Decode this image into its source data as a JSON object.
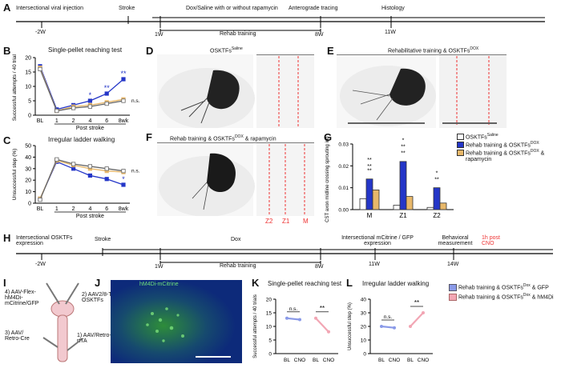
{
  "panels": {
    "A": {
      "label": "A",
      "events": [
        "Intersectional viral injection",
        "Stroke",
        "Dox/Saline with or without rapamycin",
        "Anterograde tracing",
        "Histology"
      ],
      "ticks": [
        "-2W",
        "1W",
        "8W",
        "11W"
      ],
      "rehab": "Rehab training"
    },
    "B": {
      "label": "B",
      "title": "Single-pellet reaching test",
      "ylabel": "Successful attempts / 40 trials",
      "xlabel": "Post stroke",
      "ns": "n.s."
    },
    "C": {
      "label": "C",
      "title": "Irregular ladder walking",
      "ylabel": "Unsuccessful step (%)",
      "xlabel": "Post stroke",
      "ns": "n.s."
    },
    "D": {
      "label": "D",
      "title": "OSKTFs",
      "title_sup": "Saline"
    },
    "E": {
      "label": "E",
      "title": "Rehabilitative training & OSKTFs",
      "title_sup": "DOX"
    },
    "F": {
      "label": "F",
      "title": "Rehab training & OSKTFs",
      "title_sup": "DOX",
      "title_suffix": " & rapamycin",
      "zones": [
        "Z2",
        "Z1",
        "M"
      ]
    },
    "G": {
      "label": "G",
      "ylabel": "CST axon midline crossing sprouting index",
      "legend": [
        {
          "text": "OSKTFs",
          "sup": "Saline",
          "color": "#ffffff"
        },
        {
          "text": "Rehab training & OSKTFs",
          "sup": "DOX",
          "color": "#2436c8"
        },
        {
          "text": "Rehab training & OSKTFs",
          "sup": "DOX",
          "suffix": " &",
          "color": "#e8b86a"
        },
        {
          "text": "rapamycin",
          "color": ""
        }
      ],
      "sig": [
        "**",
        "**",
        "**",
        "*",
        "**",
        "**",
        "*",
        "**"
      ]
    },
    "H": {
      "label": "H",
      "events": [
        "Intersectional OSKTFs expression",
        "Stroke",
        "Dox",
        "Intersectional mCitrine / GFP expression",
        "Behavioral measurement",
        "1h post CNO"
      ],
      "ticks": [
        "-2W",
        "1W",
        "8W",
        "11W",
        "14W"
      ],
      "rehab": "Rehab training"
    },
    "I": {
      "label": "I",
      "items": [
        "4) AAV-Flex-hM4Di-mCitrine/GFP",
        "2) AAV2/8-TRE-OSKTFs",
        "3) AAV/ Retro-Cre",
        "1) AAV/Retro-rtTA"
      ]
    },
    "J": {
      "label": "J",
      "title": "hM4Di-mCitrine"
    },
    "K": {
      "label": "K",
      "title": "Single-pellet reaching test",
      "ylabel": "Successful attempts / 40 trials",
      "ns": "n.s.",
      "sig": "**",
      "xticks": [
        "BL",
        "CNO",
        "BL",
        "CNO"
      ]
    },
    "L": {
      "label": "L",
      "title": "Irregular ladder walking",
      "ylabel": "Unsuccessful step (%)",
      "ns": "n.s.",
      "sig": "**",
      "xticks": [
        "BL",
        "CNO",
        "BL",
        "CNO"
      ],
      "legend": [
        {
          "text": "Rehab training & OSKTFs",
          "sup": "Dox",
          "suffix": " & GFP",
          "color": "#8a9ae8"
        },
        {
          "text": "Rehab training & OSKTFs",
          "sup": "Dox",
          "suffix": " & hM4Di",
          "color": "#f2a6b4"
        }
      ]
    }
  },
  "chart_data": [
    {
      "type": "line",
      "title": "Single-pellet reaching test",
      "xlabel": "Post stroke",
      "ylabel": "Successful attempts / 40 trials",
      "categories": [
        "BL",
        "1",
        "2",
        "4",
        "6",
        "8wk"
      ],
      "ylim": [
        0,
        20
      ],
      "yticks": [
        0,
        5,
        10,
        15,
        20
      ],
      "series": [
        {
          "values": [
            17,
            2,
            3.5,
            5,
            7.5,
            12.5
          ],
          "color": "#2436c8"
        },
        {
          "values": [
            16.5,
            1.5,
            3,
            3.5,
            4.5,
            5.5
          ],
          "color": "#e8b86a"
        },
        {
          "values": [
            16,
            1.5,
            2.5,
            3,
            4,
            5
          ],
          "color": "#ffffff"
        }
      ],
      "annotations": [
        "*",
        "*",
        "**",
        "**",
        "n.s."
      ]
    },
    {
      "type": "line",
      "title": "Irregular ladder walking",
      "xlabel": "Post stroke",
      "ylabel": "Unsuccessful step (%)",
      "categories": [
        "BL",
        "1",
        "2",
        "4",
        "6",
        "8wk"
      ],
      "ylim": [
        0,
        50
      ],
      "yticks": [
        0,
        10,
        20,
        30,
        40,
        50
      ],
      "series": [
        {
          "values": [
            4,
            36,
            30,
            24,
            21,
            16
          ],
          "color": "#2436c8"
        },
        {
          "values": [
            4,
            37,
            33,
            30,
            28,
            27
          ],
          "color": "#e8b86a"
        },
        {
          "values": [
            3,
            38,
            34,
            32,
            30,
            28
          ],
          "color": "#ffffff"
        }
      ],
      "annotations": [
        "*",
        "*",
        "n.s."
      ]
    },
    {
      "type": "bar",
      "ylabel": "CST axon midline crossing sprouting index",
      "categories": [
        "M",
        "Z1",
        "Z2"
      ],
      "ylim": [
        0,
        0.03
      ],
      "yticks": [
        0.0,
        0.01,
        0.02,
        0.03
      ],
      "series": [
        {
          "values": [
            0.005,
            0.002,
            0.001
          ],
          "color": "#ffffff"
        },
        {
          "values": [
            0.014,
            0.022,
            0.01
          ],
          "color": "#2436c8"
        },
        {
          "values": [
            0.009,
            0.006,
            0.003
          ],
          "color": "#e8b86a"
        }
      ]
    },
    {
      "type": "line",
      "title": "Single-pellet reaching test",
      "ylabel": "Successful attempts / 40 trials",
      "categories": [
        "BL",
        "CNO"
      ],
      "ylim": [
        0,
        20
      ],
      "yticks": [
        0,
        5,
        10,
        15,
        20
      ],
      "series": [
        {
          "values": [
            13,
            12.5
          ],
          "color": "#8a9ae8"
        },
        {
          "values": [
            13,
            8
          ],
          "color": "#f2a6b4"
        }
      ]
    },
    {
      "type": "line",
      "title": "Irregular ladder walking",
      "ylabel": "Unsuccessful step (%)",
      "categories": [
        "BL",
        "CNO"
      ],
      "ylim": [
        0,
        40
      ],
      "yticks": [
        0,
        10,
        20,
        30,
        40
      ],
      "series": [
        {
          "values": [
            20,
            19
          ],
          "color": "#8a9ae8"
        },
        {
          "values": [
            20,
            30
          ],
          "color": "#f2a6b4"
        }
      ]
    }
  ]
}
